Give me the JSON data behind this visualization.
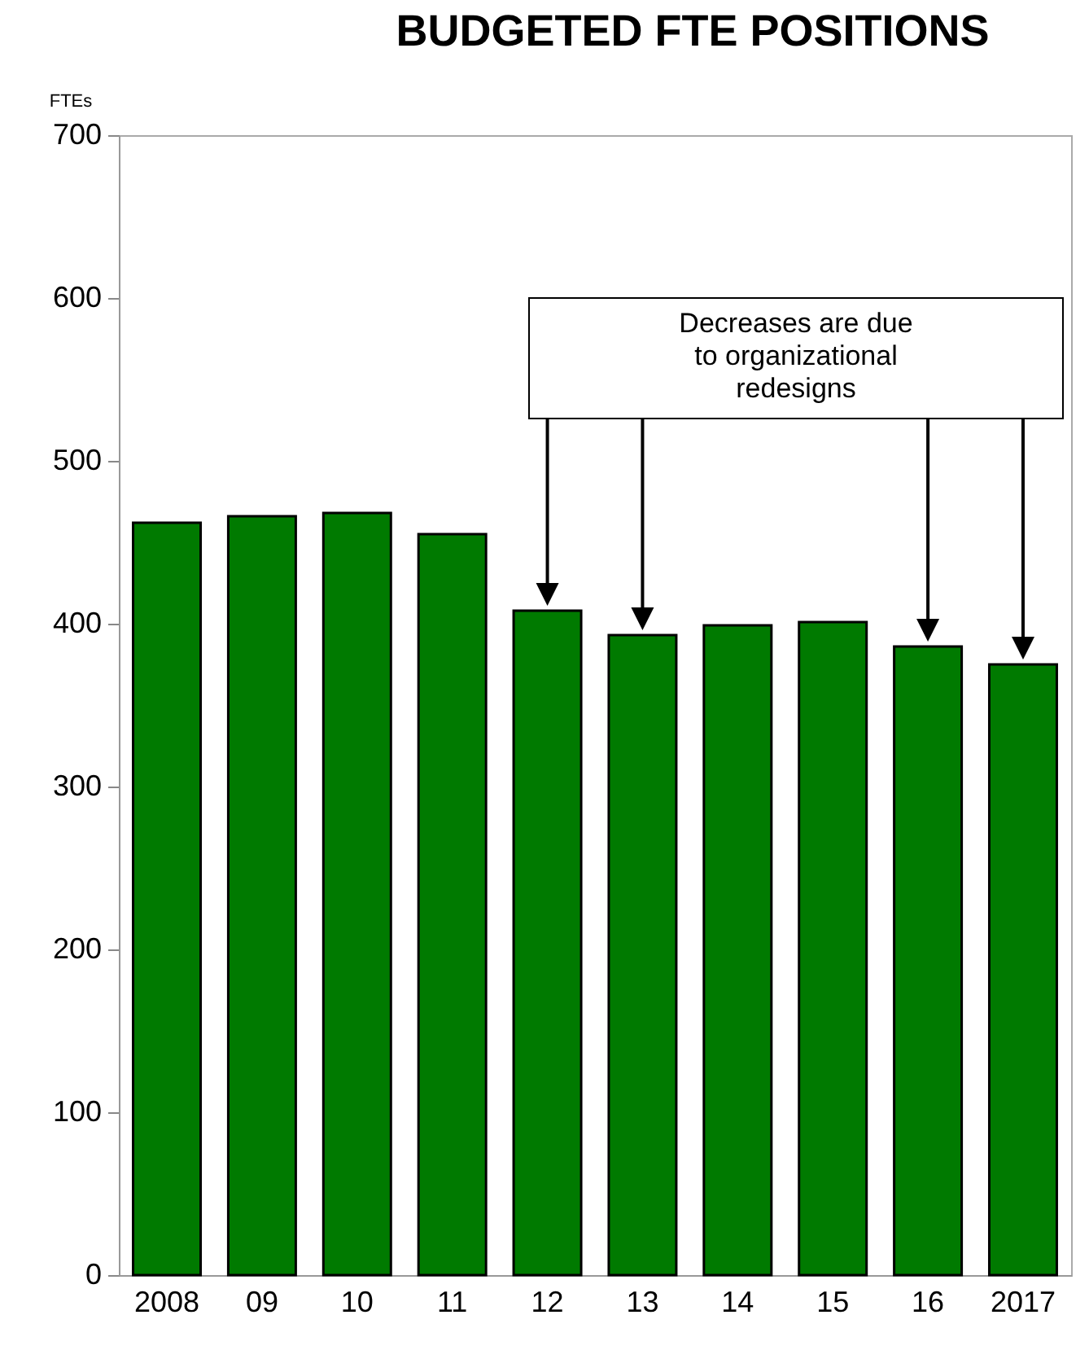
{
  "chart_data": {
    "type": "bar",
    "title": "BUDGETED FTE POSITIONS",
    "ylabel": "FTEs",
    "categories": [
      "2008",
      "09",
      "10",
      "11",
      "12",
      "13",
      "14",
      "15",
      "16",
      "2017"
    ],
    "values": [
      462,
      466,
      468,
      455,
      408,
      393,
      399,
      401,
      386,
      375
    ],
    "color": "#007a00",
    "ylim": [
      0,
      700
    ],
    "yticks": [
      0,
      100,
      200,
      300,
      400,
      500,
      600,
      700
    ],
    "grid": false,
    "annotations": [
      "Decreases are due to organizational redesigns"
    ]
  }
}
